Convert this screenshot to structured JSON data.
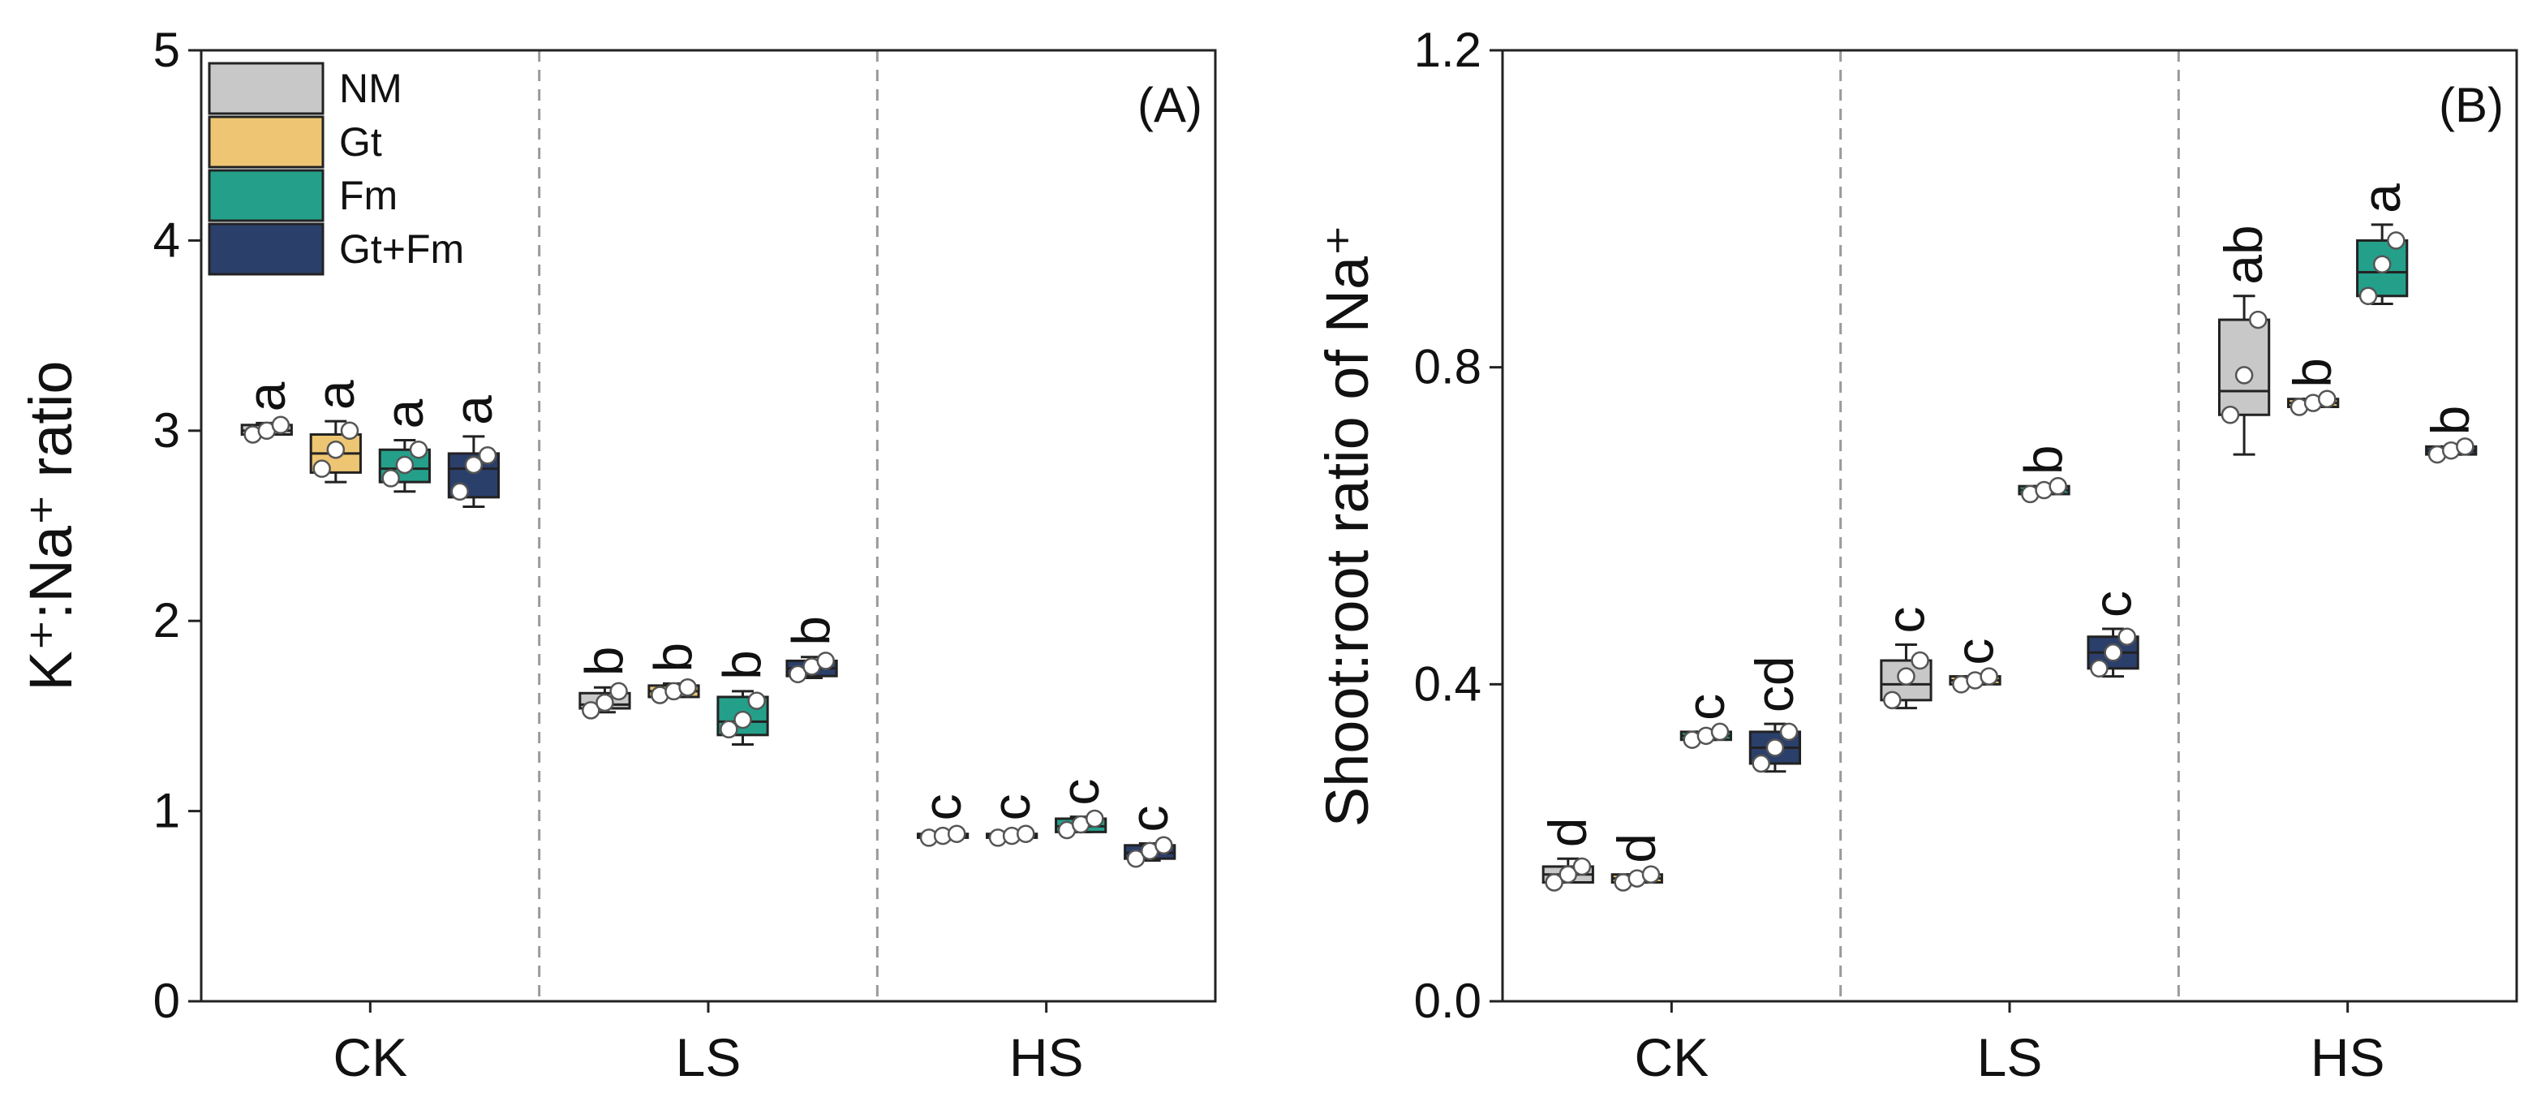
{
  "legend": [
    {
      "name": "NM",
      "color": "#c8c8c8"
    },
    {
      "name": "Gt",
      "color": "#eec673"
    },
    {
      "name": "Fm",
      "color": "#24a08a"
    },
    {
      "name": "Gt+Fm",
      "color": "#2b3f6b"
    }
  ],
  "chart_data": [
    {
      "type": "box",
      "panel_label": "(A)",
      "ylabel": "K⁺:Na⁺ ratio",
      "ylim": [
        0,
        5
      ],
      "yticks": [
        "0",
        "1",
        "2",
        "3",
        "4",
        "5"
      ],
      "categories": [
        "CK",
        "LS",
        "HS"
      ],
      "legend_position": "top-left",
      "series": [
        {
          "name": "NM",
          "groups": [
            {
              "min": 2.98,
              "q1": 2.98,
              "median": 3.0,
              "q3": 3.03,
              "max": 3.04,
              "points": [
                2.98,
                3.0,
                3.03
              ],
              "letter": "a"
            },
            {
              "min": 1.52,
              "q1": 1.54,
              "median": 1.56,
              "q3": 1.62,
              "max": 1.65,
              "points": [
                1.53,
                1.57,
                1.63
              ],
              "letter": "b"
            },
            {
              "min": 0.85,
              "q1": 0.86,
              "median": 0.87,
              "q3": 0.88,
              "max": 0.89,
              "points": [
                0.86,
                0.87,
                0.88
              ],
              "letter": "c"
            }
          ]
        },
        {
          "name": "Gt",
          "groups": [
            {
              "min": 2.73,
              "q1": 2.78,
              "median": 2.88,
              "q3": 2.98,
              "max": 3.05,
              "points": [
                2.8,
                2.9,
                3.0
              ],
              "letter": "a"
            },
            {
              "min": 1.6,
              "q1": 1.6,
              "median": 1.63,
              "q3": 1.66,
              "max": 1.67,
              "points": [
                1.61,
                1.63,
                1.65
              ],
              "letter": "b"
            },
            {
              "min": 0.86,
              "q1": 0.86,
              "median": 0.87,
              "q3": 0.88,
              "max": 0.89,
              "points": [
                0.86,
                0.87,
                0.88
              ],
              "letter": "c"
            }
          ]
        },
        {
          "name": "Fm",
          "groups": [
            {
              "min": 2.68,
              "q1": 2.73,
              "median": 2.8,
              "q3": 2.9,
              "max": 2.95,
              "points": [
                2.75,
                2.82,
                2.9
              ],
              "letter": "a"
            },
            {
              "min": 1.35,
              "q1": 1.4,
              "median": 1.47,
              "q3": 1.6,
              "max": 1.63,
              "points": [
                1.43,
                1.48,
                1.58
              ],
              "letter": "b"
            },
            {
              "min": 0.89,
              "q1": 0.89,
              "median": 0.92,
              "q3": 0.96,
              "max": 0.97,
              "points": [
                0.9,
                0.93,
                0.96
              ],
              "letter": "c"
            }
          ]
        },
        {
          "name": "Gt+Fm",
          "groups": [
            {
              "min": 2.6,
              "q1": 2.65,
              "median": 2.8,
              "q3": 2.88,
              "max": 2.97,
              "points": [
                2.68,
                2.82,
                2.87
              ],
              "letter": "a"
            },
            {
              "min": 1.7,
              "q1": 1.71,
              "median": 1.75,
              "q3": 1.79,
              "max": 1.81,
              "points": [
                1.72,
                1.76,
                1.79
              ],
              "letter": "b"
            },
            {
              "min": 0.74,
              "q1": 0.75,
              "median": 0.78,
              "q3": 0.82,
              "max": 0.83,
              "points": [
                0.75,
                0.79,
                0.82
              ],
              "letter": "c"
            }
          ]
        }
      ]
    },
    {
      "type": "box",
      "panel_label": "(B)",
      "ylabel": "Shoot:root ratio of Na⁺",
      "ylim": [
        0,
        1.2
      ],
      "yticks": [
        "0.0",
        "0.4",
        "0.8",
        "1.2"
      ],
      "categories": [
        "CK",
        "LS",
        "HS"
      ],
      "series": [
        {
          "name": "NM",
          "groups": [
            {
              "min": 0.15,
              "q1": 0.15,
              "median": 0.16,
              "q3": 0.17,
              "max": 0.18,
              "points": [
                0.15,
                0.16,
                0.17
              ],
              "letter": "d"
            },
            {
              "min": 0.37,
              "q1": 0.38,
              "median": 0.4,
              "q3": 0.43,
              "max": 0.45,
              "points": [
                0.38,
                0.41,
                0.43
              ],
              "letter": "c"
            },
            {
              "min": 0.69,
              "q1": 0.74,
              "median": 0.77,
              "q3": 0.86,
              "max": 0.89,
              "points": [
                0.74,
                0.79,
                0.86
              ],
              "letter": "ab"
            }
          ]
        },
        {
          "name": "Gt",
          "groups": [
            {
              "min": 0.15,
              "q1": 0.15,
              "median": 0.155,
              "q3": 0.16,
              "max": 0.16,
              "points": [
                0.15,
                0.155,
                0.16
              ],
              "letter": "d"
            },
            {
              "min": 0.4,
              "q1": 0.4,
              "median": 0.405,
              "q3": 0.41,
              "max": 0.41,
              "points": [
                0.4,
                0.405,
                0.41
              ],
              "letter": "c"
            },
            {
              "min": 0.75,
              "q1": 0.75,
              "median": 0.755,
              "q3": 0.76,
              "max": 0.76,
              "points": [
                0.75,
                0.755,
                0.76
              ],
              "letter": "b"
            }
          ]
        },
        {
          "name": "Fm",
          "groups": [
            {
              "min": 0.33,
              "q1": 0.33,
              "median": 0.335,
              "q3": 0.34,
              "max": 0.34,
              "points": [
                0.33,
                0.335,
                0.34
              ],
              "letter": "c"
            },
            {
              "min": 0.64,
              "q1": 0.64,
              "median": 0.645,
              "q3": 0.65,
              "max": 0.65,
              "points": [
                0.64,
                0.645,
                0.65
              ],
              "letter": "b"
            },
            {
              "min": 0.88,
              "q1": 0.89,
              "median": 0.92,
              "q3": 0.96,
              "max": 0.98,
              "points": [
                0.89,
                0.93,
                0.96
              ],
              "letter": "a"
            }
          ]
        },
        {
          "name": "Gt+Fm",
          "groups": [
            {
              "min": 0.29,
              "q1": 0.3,
              "median": 0.32,
              "q3": 0.34,
              "max": 0.35,
              "points": [
                0.3,
                0.32,
                0.34
              ],
              "letter": "cd"
            },
            {
              "min": 0.41,
              "q1": 0.42,
              "median": 0.44,
              "q3": 0.46,
              "max": 0.47,
              "points": [
                0.42,
                0.44,
                0.46
              ],
              "letter": "c"
            },
            {
              "min": 0.69,
              "q1": 0.69,
              "median": 0.695,
              "q3": 0.7,
              "max": 0.7,
              "points": [
                0.69,
                0.695,
                0.7
              ],
              "letter": "b"
            }
          ]
        }
      ]
    }
  ]
}
